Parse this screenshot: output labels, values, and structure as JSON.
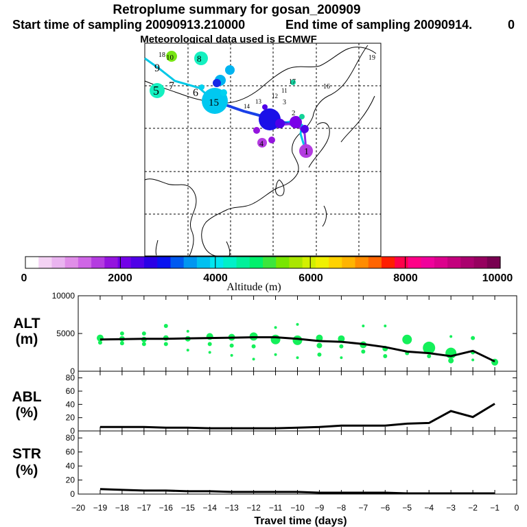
{
  "title": {
    "line1": "Retroplume summary for gosan_200909",
    "start": "Start time of sampling 20090913.210000",
    "end": "End time of sampling 20090914.",
    "end_suffix": "0",
    "line3": "Meteorological data used is ECMWF"
  },
  "colorbar": {
    "label": "Altitude (m)",
    "ticks": [
      "0",
      "2000",
      "4000",
      "6000",
      "8000",
      "10000"
    ],
    "colors": [
      "#ffffff",
      "#f4d2f4",
      "#eab4f0",
      "#e08ee8",
      "#cf66e6",
      "#b43ce0",
      "#9414de",
      "#7300e8",
      "#4f00e8",
      "#2a00e6",
      "#0a14f0",
      "#005af0",
      "#0096f0",
      "#00c0f0",
      "#00e6f0",
      "#00f0c8",
      "#00f09a",
      "#00f06c",
      "#3ce63c",
      "#78e600",
      "#aae600",
      "#d2f000",
      "#f0f000",
      "#ffd200",
      "#ffb400",
      "#ff8c00",
      "#ff6400",
      "#ff1e00",
      "#ff004b",
      "#ff0087",
      "#f0009b",
      "#dc008c",
      "#c3007d",
      "#aa006e",
      "#96005f",
      "#780050"
    ]
  },
  "map": {
    "trajectory_labels": [
      "1",
      "2",
      "3",
      "4",
      "5",
      "6",
      "7",
      "8",
      "9",
      "10",
      "11",
      "12",
      "13",
      "14",
      "15",
      "16",
      "17",
      "18",
      "19"
    ]
  },
  "chart_data": [
    {
      "type": "line",
      "panel": "ALT",
      "ylabel_top": "ALT",
      "ylabel_bottom": "(m)",
      "ylim": [
        0,
        10000
      ],
      "yticks": [
        "0",
        "5000",
        "10000"
      ],
      "x": [
        -19,
        -18,
        -17,
        -16,
        -15,
        -14,
        -13,
        -12,
        -11,
        -10,
        -9,
        -8,
        -7,
        -6,
        -5,
        -4,
        -3,
        -2,
        -1
      ],
      "values": [
        4200,
        4250,
        4300,
        4300,
        4350,
        4400,
        4450,
        4500,
        4500,
        4300,
        4000,
        3900,
        3600,
        3200,
        2600,
        2400,
        2000,
        2700,
        1300
      ],
      "scatter": [
        {
          "x": -19,
          "y": 4400,
          "s": 5
        },
        {
          "x": -19,
          "y": 3800,
          "s": 3
        },
        {
          "x": -18,
          "y": 4300,
          "s": 4
        },
        {
          "x": -18,
          "y": 5000,
          "s": 3
        },
        {
          "x": -18,
          "y": 3700,
          "s": 3
        },
        {
          "x": -17,
          "y": 4200,
          "s": 4
        },
        {
          "x": -17,
          "y": 5000,
          "s": 3
        },
        {
          "x": -17,
          "y": 3600,
          "s": 3
        },
        {
          "x": -16,
          "y": 4400,
          "s": 4
        },
        {
          "x": -16,
          "y": 6000,
          "s": 3
        },
        {
          "x": -16,
          "y": 3600,
          "s": 3
        },
        {
          "x": -15,
          "y": 4300,
          "s": 4
        },
        {
          "x": -15,
          "y": 2800,
          "s": 2
        },
        {
          "x": -15,
          "y": 5300,
          "s": 2
        },
        {
          "x": -14,
          "y": 4600,
          "s": 5
        },
        {
          "x": -14,
          "y": 3600,
          "s": 3
        },
        {
          "x": -14,
          "y": 2500,
          "s": 2
        },
        {
          "x": -13,
          "y": 4500,
          "s": 5
        },
        {
          "x": -13,
          "y": 3400,
          "s": 3
        },
        {
          "x": -13,
          "y": 2100,
          "s": 2
        },
        {
          "x": -12,
          "y": 4600,
          "s": 6
        },
        {
          "x": -12,
          "y": 3300,
          "s": 3
        },
        {
          "x": -12,
          "y": 1600,
          "s": 2
        },
        {
          "x": -11,
          "y": 4200,
          "s": 7
        },
        {
          "x": -11,
          "y": 5800,
          "s": 2
        },
        {
          "x": -11,
          "y": 2200,
          "s": 2
        },
        {
          "x": -10,
          "y": 4100,
          "s": 7
        },
        {
          "x": -10,
          "y": 6200,
          "s": 2
        },
        {
          "x": -10,
          "y": 1800,
          "s": 2
        },
        {
          "x": -9,
          "y": 4400,
          "s": 5
        },
        {
          "x": -9,
          "y": 3400,
          "s": 4
        },
        {
          "x": -9,
          "y": 2200,
          "s": 3
        },
        {
          "x": -8,
          "y": 4300,
          "s": 5
        },
        {
          "x": -8,
          "y": 3300,
          "s": 3
        },
        {
          "x": -8,
          "y": 1800,
          "s": 2
        },
        {
          "x": -7,
          "y": 3500,
          "s": 5
        },
        {
          "x": -7,
          "y": 2600,
          "s": 3
        },
        {
          "x": -7,
          "y": 6000,
          "s": 2
        },
        {
          "x": -6,
          "y": 3000,
          "s": 4
        },
        {
          "x": -6,
          "y": 2000,
          "s": 3
        },
        {
          "x": -6,
          "y": 6000,
          "s": 2
        },
        {
          "x": -5,
          "y": 4200,
          "s": 7
        },
        {
          "x": -5,
          "y": 2400,
          "s": 3
        },
        {
          "x": -4,
          "y": 3100,
          "s": 9
        },
        {
          "x": -4,
          "y": 2000,
          "s": 3
        },
        {
          "x": -3,
          "y": 2400,
          "s": 8
        },
        {
          "x": -3,
          "y": 1400,
          "s": 4
        },
        {
          "x": -3,
          "y": 4600,
          "s": 2
        },
        {
          "x": -2,
          "y": 4400,
          "s": 3
        },
        {
          "x": -2,
          "y": 2500,
          "s": 3
        },
        {
          "x": -2,
          "y": 1500,
          "s": 2
        },
        {
          "x": -1,
          "y": 1200,
          "s": 5
        }
      ]
    },
    {
      "type": "line",
      "panel": "ABL",
      "ylabel_top": "ABL",
      "ylabel_bottom": "(%)",
      "ylim": [
        0,
        90
      ],
      "yticks": [
        "0",
        "20",
        "40",
        "60",
        "80"
      ],
      "x": [
        -19,
        -18,
        -17,
        -16,
        -15,
        -14,
        -13,
        -12,
        -11,
        -10,
        -9,
        -8,
        -7,
        -6,
        -5,
        -4,
        -3,
        -2,
        -1
      ],
      "values": [
        6,
        6,
        6,
        5,
        5,
        4,
        4,
        4,
        4,
        5,
        6,
        8,
        8,
        8,
        11,
        12,
        30,
        21,
        41
      ]
    },
    {
      "type": "line",
      "panel": "STR",
      "ylabel_top": "STR",
      "ylabel_bottom": "(%)",
      "ylim": [
        0,
        90
      ],
      "yticks": [
        "0",
        "20",
        "40",
        "60",
        "80"
      ],
      "x": [
        -19,
        -18,
        -17,
        -16,
        -15,
        -14,
        -13,
        -12,
        -11,
        -10,
        -9,
        -8,
        -7,
        -6,
        -5,
        -4,
        -3,
        -2,
        -1
      ],
      "values": [
        7,
        6,
        5,
        5,
        4,
        4,
        3,
        3,
        3,
        3,
        2,
        2,
        2,
        2,
        1,
        1,
        1,
        1,
        1
      ]
    }
  ],
  "xaxis": {
    "label": "Travel time (days)",
    "ticks": [
      "−20",
      "−19",
      "−18",
      "−17",
      "−16",
      "−15",
      "−14",
      "−13",
      "−12",
      "−11",
      "−10",
      "−9",
      "−8",
      "−7",
      "−6",
      "−5",
      "−4",
      "−3",
      "−2",
      "−1",
      "0"
    ]
  }
}
